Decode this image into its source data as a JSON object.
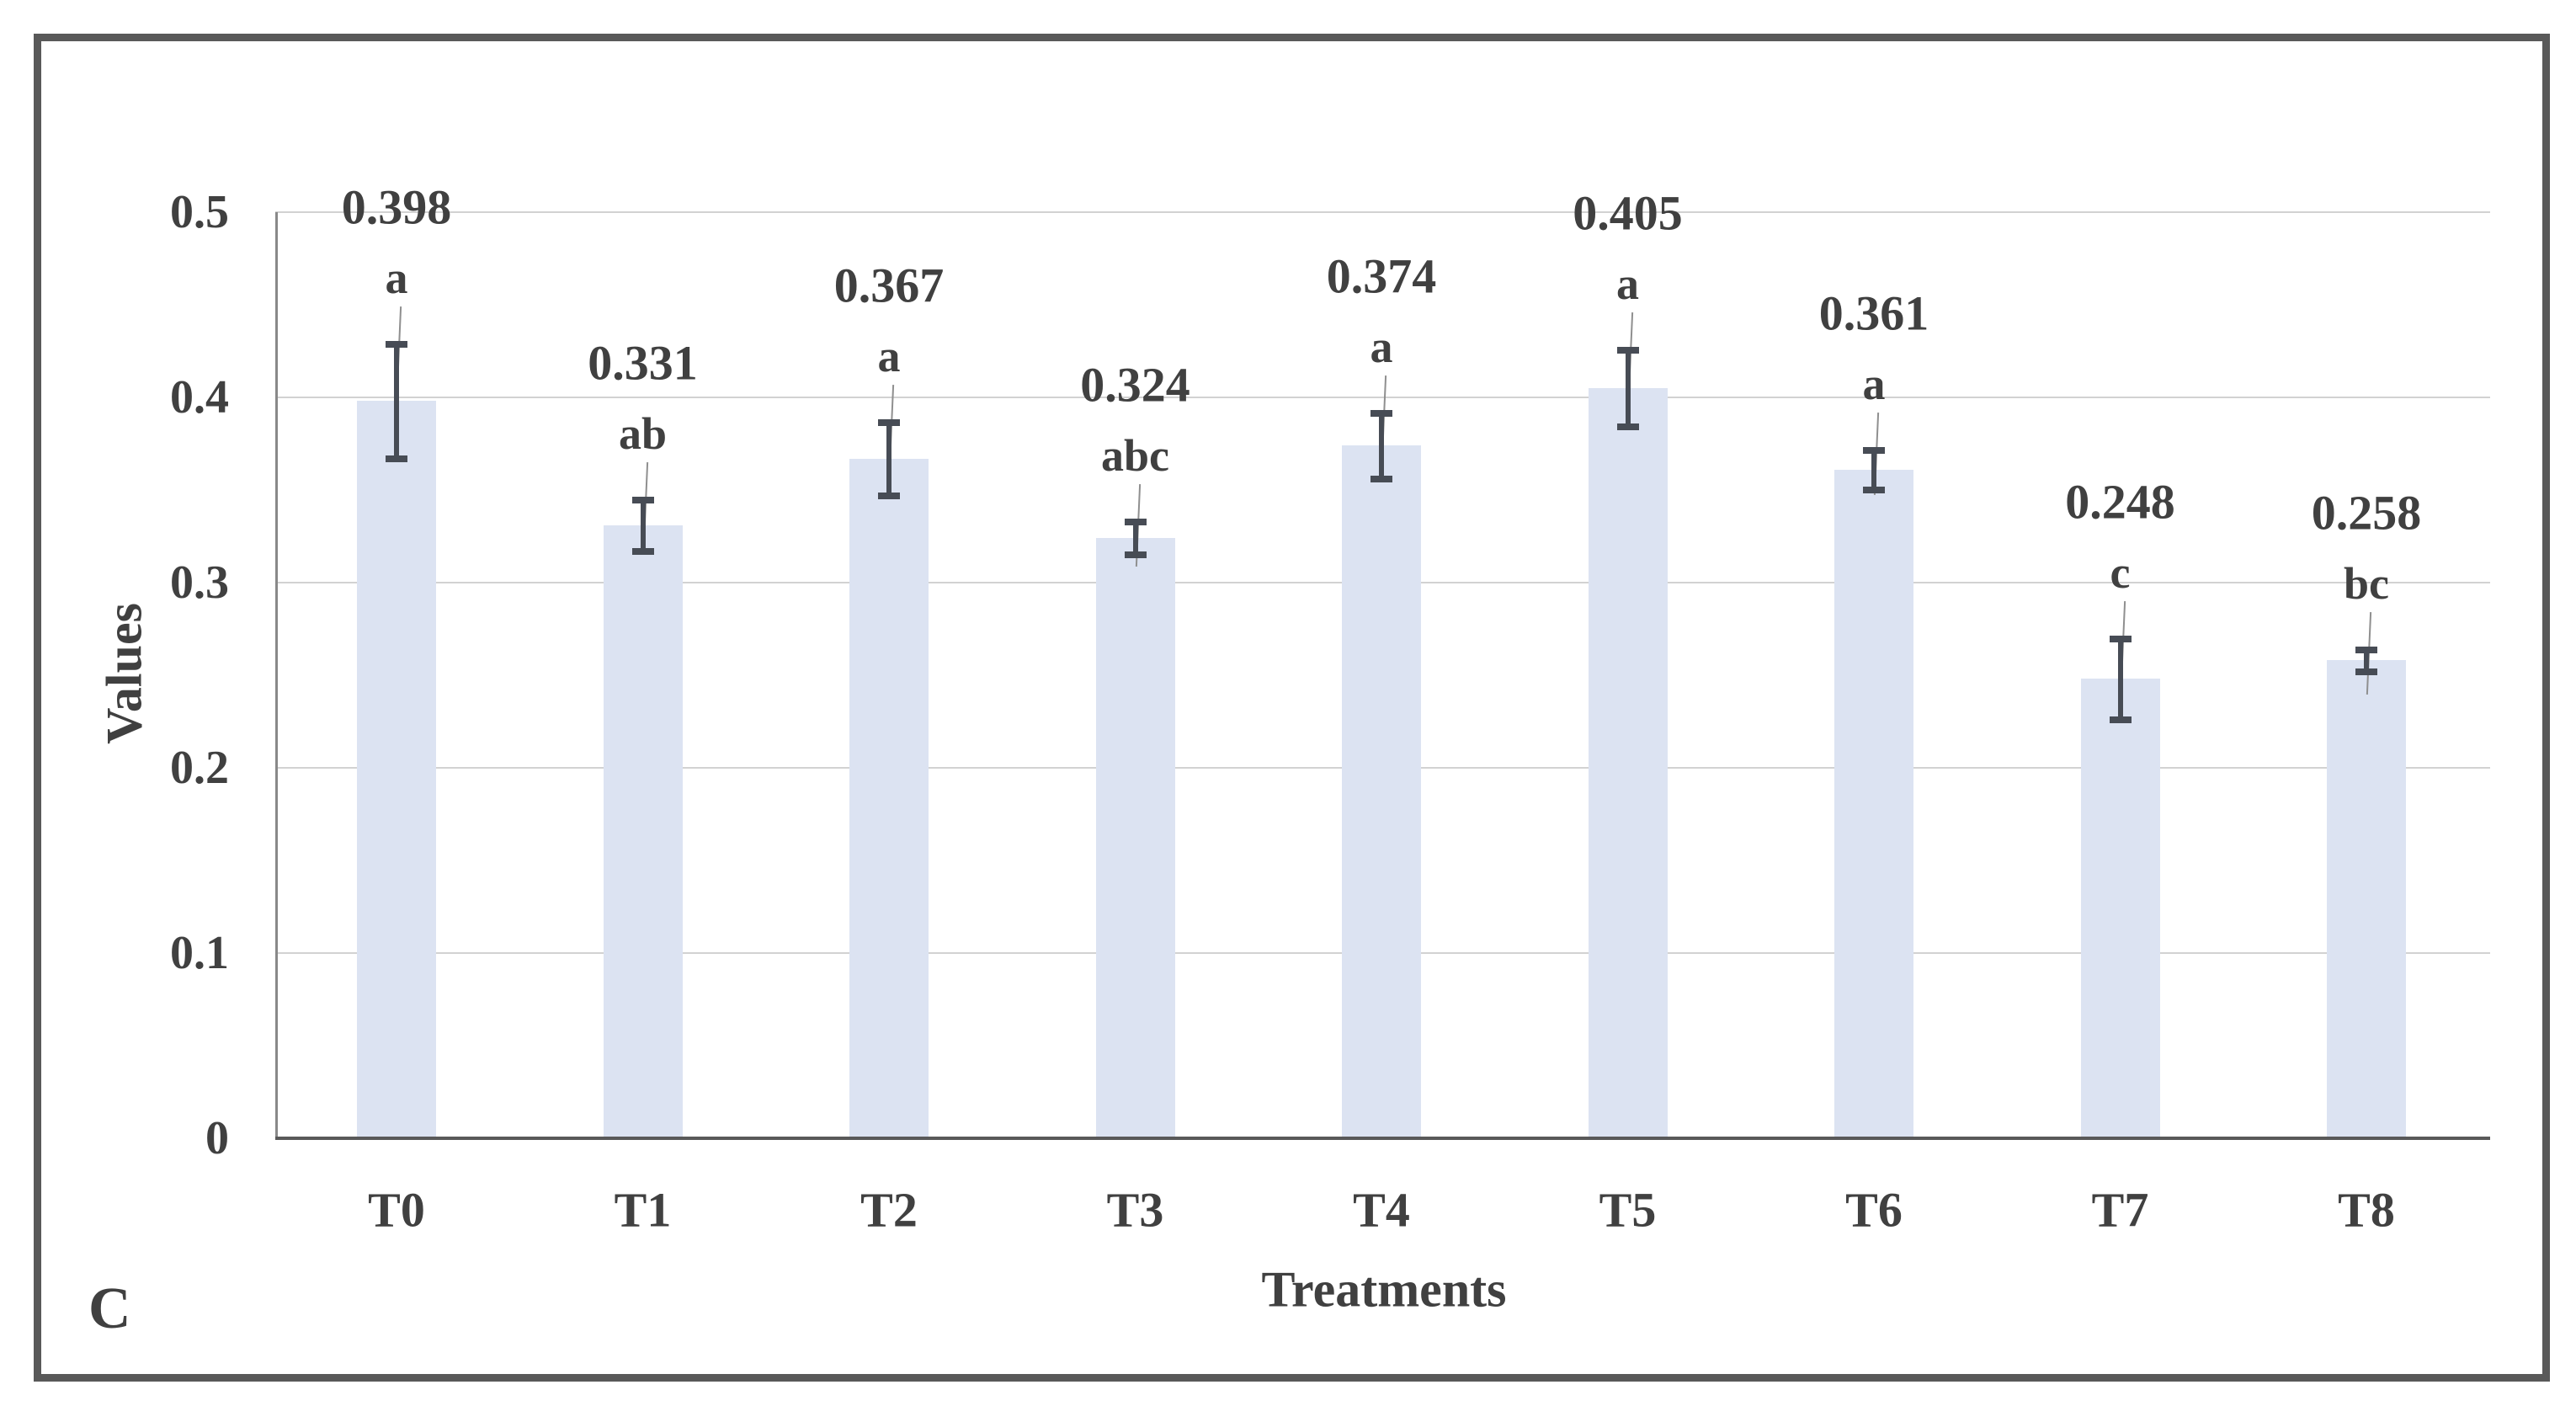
{
  "panel_label": "C",
  "chart_data": {
    "type": "bar",
    "title": "",
    "categories": [
      "T0",
      "T1",
      "T2",
      "T3",
      "T4",
      "T5",
      "T6",
      "T7",
      "T8"
    ],
    "values": [
      0.398,
      0.331,
      0.367,
      0.324,
      0.374,
      0.405,
      0.361,
      0.248,
      0.258
    ],
    "value_labels": [
      "0.398",
      "0.331",
      "0.367",
      "0.324",
      "0.374",
      "0.405",
      "0.361",
      "0.248",
      "0.258"
    ],
    "errors": [
      0.031,
      0.014,
      0.02,
      0.009,
      0.018,
      0.021,
      0.011,
      0.022,
      0.006
    ],
    "sig_letters": [
      "a",
      "ab",
      "a",
      "abc",
      "a",
      "a",
      "a",
      "c",
      "bc"
    ],
    "xlabel": "Treatments",
    "ylabel": "Values",
    "ylim": [
      0,
      0.5
    ],
    "y_ticks": [
      {
        "label": "0",
        "value": 0
      },
      {
        "label": "0.1",
        "value": 0.1
      },
      {
        "label": "0.2",
        "value": 0.2
      },
      {
        "label": "0.3",
        "value": 0.3
      },
      {
        "label": "0.4",
        "value": 0.4
      },
      {
        "label": "0.5",
        "value": 0.5
      }
    ],
    "grid": true,
    "legend": "none",
    "error_bars": true,
    "label_leader_lines": true,
    "colors": {
      "bar_fill": "#dce3f2",
      "error_bar": "#474c55",
      "gridline": "#d2d2d2",
      "x_axis_line": "#595959",
      "y_axis_line": "#898989",
      "text": "#404040",
      "leader_line": "#8f8f8f",
      "frame_border": "#595959",
      "background": "#ffffff"
    }
  }
}
